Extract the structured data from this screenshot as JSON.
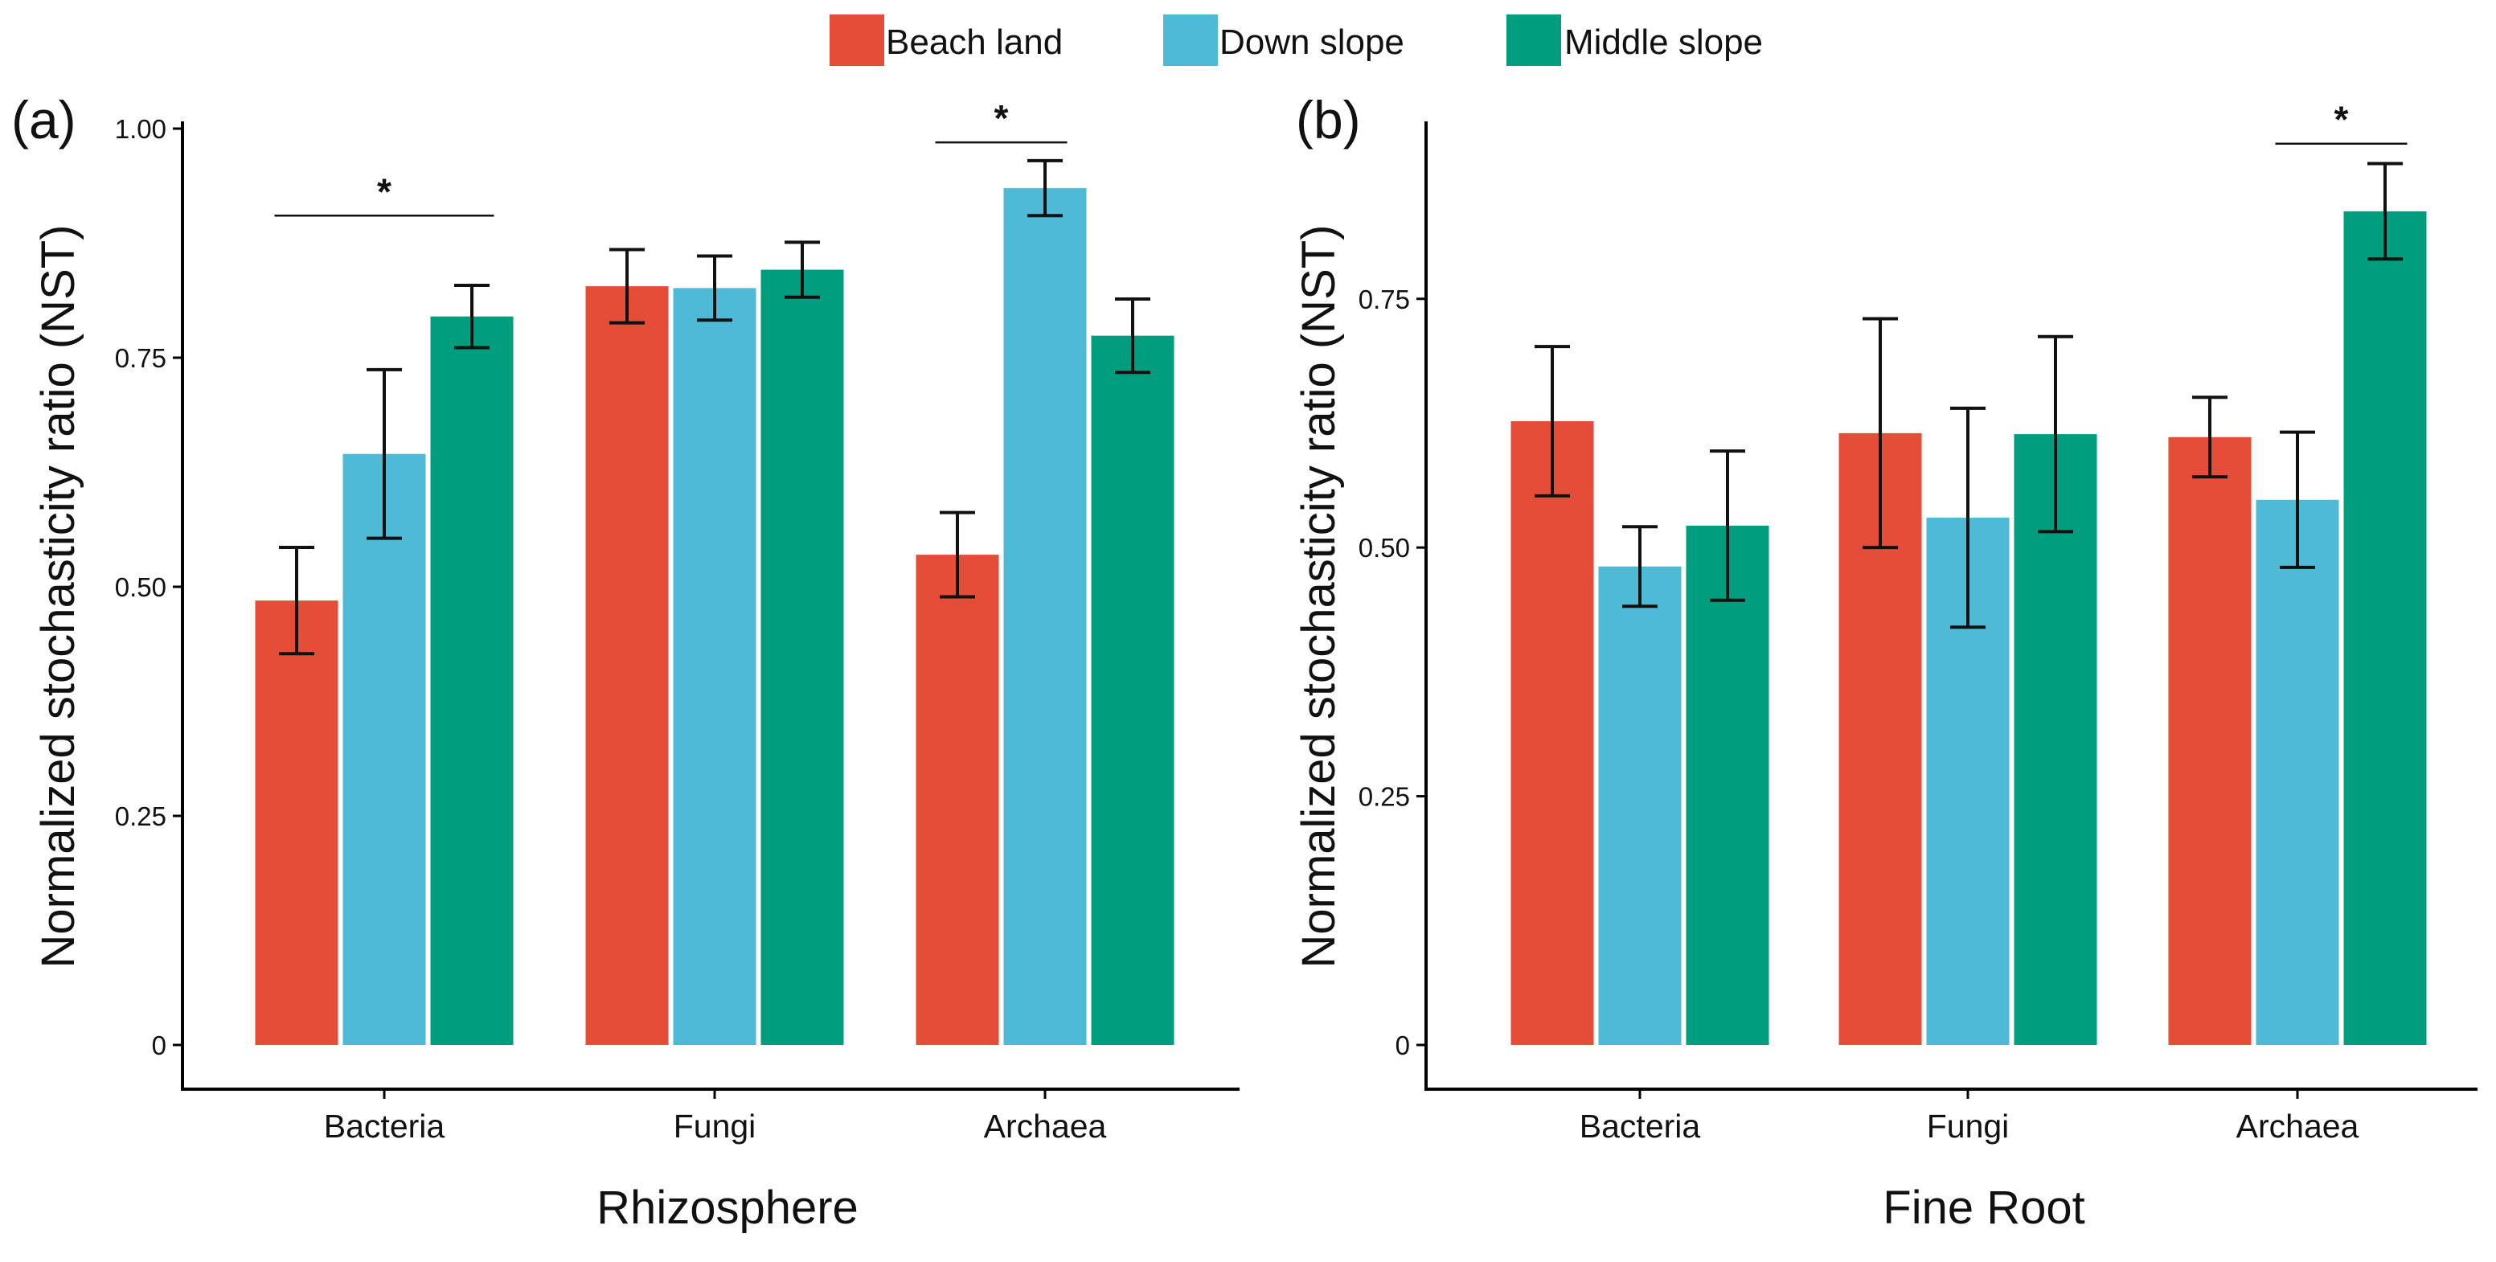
{
  "colors": {
    "beach_land": "#E44D37",
    "down_slope": "#4FBAD6",
    "middle_slope": "#009E7F"
  },
  "legend": [
    {
      "label": "Beach land",
      "color": "#E44D37"
    },
    {
      "label": "Down slope",
      "color": "#4FBAD6"
    },
    {
      "label": "Middle slope",
      "color": "#009E7F"
    }
  ],
  "chart_data": [
    {
      "panel": "(a)",
      "type": "bar",
      "xlabel": "Rhizosphere",
      "ylabel": "Normalized stochasticity ratio (NST)",
      "ylim": [
        0,
        1.0
      ],
      "yticks": [
        0,
        0.25,
        0.5,
        0.75,
        1.0
      ],
      "ytick_labels": [
        "0",
        "0.25",
        "0.50",
        "0.75",
        "1.00"
      ],
      "categories": [
        "Bacteria",
        "Fungi",
        "Archaea"
      ],
      "series": [
        {
          "name": "Beach land",
          "values": [
            0.485,
            0.828,
            0.535
          ],
          "errors": [
            0.058,
            0.04,
            0.046
          ]
        },
        {
          "name": "Down slope",
          "values": [
            0.645,
            0.826,
            0.935
          ],
          "errors": [
            0.092,
            0.035,
            0.03
          ]
        },
        {
          "name": "Middle slope",
          "values": [
            0.795,
            0.846,
            0.774
          ],
          "errors": [
            0.034,
            0.03,
            0.04
          ]
        }
      ],
      "significance": [
        {
          "category_index": 0,
          "from_series": 0,
          "to_series": 2,
          "y": 0.905,
          "label": "*"
        },
        {
          "category_index": 2,
          "from_series": 0,
          "to_series": 1,
          "y": 0.985,
          "label": "*"
        }
      ]
    },
    {
      "panel": "(b)",
      "type": "bar",
      "xlabel": "Fine Root",
      "ylabel": "Normalized stochasticity ratio (NST)",
      "ylim": [
        0,
        0.93
      ],
      "yticks": [
        0,
        0.25,
        0.5,
        0.75
      ],
      "ytick_labels": [
        "0",
        "0.25",
        "0.50",
        "0.75"
      ],
      "categories": [
        "Bacteria",
        "Fungi",
        "Archaea"
      ],
      "series": [
        {
          "name": "Beach land",
          "values": [
            0.627,
            0.615,
            0.611
          ],
          "errors": [
            0.075,
            0.115,
            0.04
          ]
        },
        {
          "name": "Down slope",
          "values": [
            0.481,
            0.53,
            0.548
          ],
          "errors": [
            0.04,
            0.11,
            0.068
          ]
        },
        {
          "name": "Middle slope",
          "values": [
            0.522,
            0.614,
            0.838
          ],
          "errors": [
            0.075,
            0.098,
            0.048
          ]
        }
      ],
      "significance": [
        {
          "category_index": 2,
          "from_series": 1,
          "to_series": 2,
          "y": 0.906,
          "label": "*"
        }
      ]
    }
  ]
}
